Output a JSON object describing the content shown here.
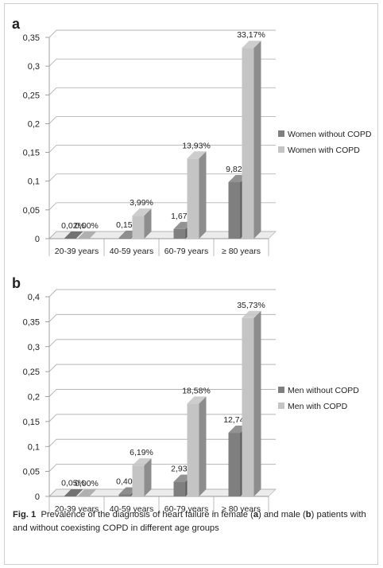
{
  "figure": {
    "label": "Fig. 1",
    "caption_parts": [
      "Prevalence of the diagnosis of heart failure in female (",
      "a",
      ") and male (",
      "b",
      ") patients with and without coexisting COPD in different age groups"
    ]
  },
  "chart_data": [
    {
      "type": "bar",
      "panel": "a",
      "categories": [
        "20-39 years",
        "40-59 years",
        "60-79 years",
        "≥ 80 years"
      ],
      "series": [
        {
          "name": "Women without COPD",
          "values": [
            0.0002,
            0.0015,
            0.0167,
            0.0982
          ],
          "labels": [
            "0,02%",
            "0,15%",
            "1,67%",
            "9,82%"
          ],
          "color": "#7f7f7f"
        },
        {
          "name": "Women with COPD",
          "values": [
            0.0,
            0.0399,
            0.1393,
            0.3317
          ],
          "labels": [
            "0,00%",
            "3,99%",
            "13,93%",
            "33,17%"
          ],
          "color": "#c4c4c4"
        }
      ],
      "yticks": [
        "0",
        "0,05",
        "0,1",
        "0,15",
        "0,2",
        "0,25",
        "0,3",
        "0,35"
      ],
      "ylim": [
        0,
        0.35
      ],
      "grid": true,
      "legend": "right"
    },
    {
      "type": "bar",
      "panel": "b",
      "categories": [
        "20-39 years",
        "40-59 years",
        "60-79 years",
        "≥ 80 years"
      ],
      "series": [
        {
          "name": "Men without COPD",
          "values": [
            0.0005,
            0.004,
            0.0293,
            0.1274
          ],
          "labels": [
            "0,05%",
            "0,40%",
            "2,93%",
            "12,74%"
          ],
          "color": "#7f7f7f"
        },
        {
          "name": "Men with COPD",
          "values": [
            0.0,
            0.0619,
            0.1858,
            0.3573
          ],
          "labels": [
            "0,00%",
            "6,19%",
            "18,58%",
            "35,73%"
          ],
          "color": "#c4c4c4"
        }
      ],
      "yticks": [
        "0",
        "0,05",
        "0,1",
        "0,15",
        "0,2",
        "0,25",
        "0,3",
        "0,35",
        "0,4"
      ],
      "ylim": [
        0,
        0.4
      ],
      "grid": true,
      "legend": "right"
    }
  ]
}
